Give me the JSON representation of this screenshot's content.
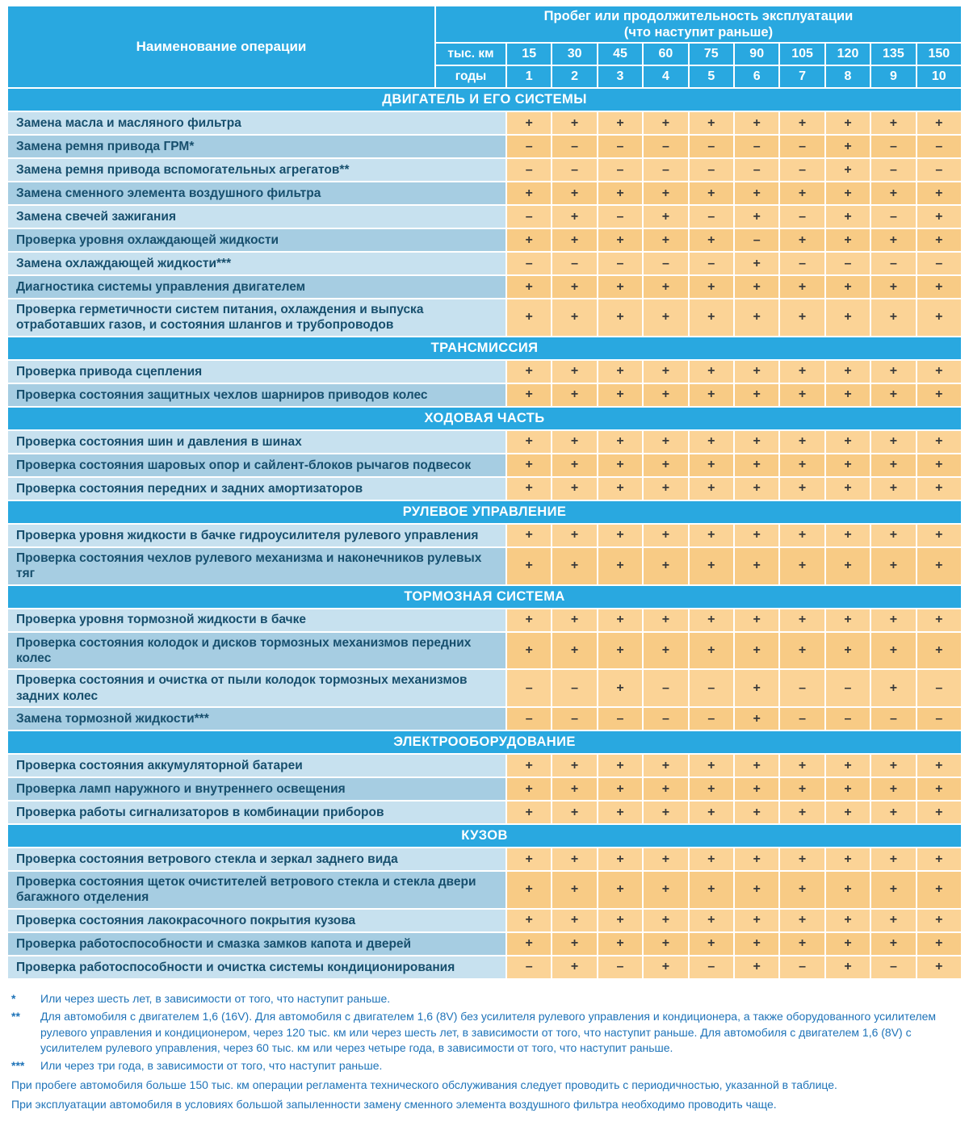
{
  "colors": {
    "header_blue": "#29a8e0",
    "label_light": "#c7e1ef",
    "label_dark": "#a6cde2",
    "cell_light": "#fbd396",
    "cell_dark": "#f8cb85",
    "label_text": "#174f6d",
    "mark_text": "#3a3a3a",
    "footnote_blue": "#1e73b8"
  },
  "header": {
    "operation_column_title": "Наименование операции",
    "interval_title": "Пробег или продолжительность эксплуатации\n(что наступит раньше)",
    "row_km": {
      "label": "тыс. км",
      "values": [
        "15",
        "30",
        "45",
        "60",
        "75",
        "90",
        "105",
        "120",
        "135",
        "150"
      ]
    },
    "row_years": {
      "label": "годы",
      "values": [
        "1",
        "2",
        "3",
        "4",
        "5",
        "6",
        "7",
        "8",
        "9",
        "10"
      ]
    }
  },
  "sections": [
    {
      "title": "ДВИГАТЕЛЬ И ЕГО СИСТЕМЫ",
      "rows": [
        {
          "label": "Замена масла и масляного фильтра",
          "marks": [
            "+",
            "+",
            "+",
            "+",
            "+",
            "+",
            "+",
            "+",
            "+",
            "+"
          ]
        },
        {
          "label": "Замена ремня привода ГРМ*",
          "marks": [
            "–",
            "–",
            "–",
            "–",
            "–",
            "–",
            "–",
            "+",
            "–",
            "–"
          ]
        },
        {
          "label": "Замена ремня привода вспомогательных агрегатов**",
          "marks": [
            "–",
            "–",
            "–",
            "–",
            "–",
            "–",
            "–",
            "+",
            "–",
            "–"
          ]
        },
        {
          "label": "Замена сменного элемента воздушного фильтра",
          "marks": [
            "+",
            "+",
            "+",
            "+",
            "+",
            "+",
            "+",
            "+",
            "+",
            "+"
          ]
        },
        {
          "label": "Замена свечей зажигания",
          "marks": [
            "–",
            "+",
            "–",
            "+",
            "–",
            "+",
            "–",
            "+",
            "–",
            "+"
          ]
        },
        {
          "label": "Проверка уровня охлаждающей жидкости",
          "marks": [
            "+",
            "+",
            "+",
            "+",
            "+",
            "–",
            "+",
            "+",
            "+",
            "+"
          ]
        },
        {
          "label": "Замена охлаждающей жидкости***",
          "marks": [
            "–",
            "–",
            "–",
            "–",
            "–",
            "+",
            "–",
            "–",
            "–",
            "–"
          ]
        },
        {
          "label": "Диагностика системы управления двигателем",
          "marks": [
            "+",
            "+",
            "+",
            "+",
            "+",
            "+",
            "+",
            "+",
            "+",
            "+"
          ]
        },
        {
          "label": "Проверка герметичности систем питания, охлаждения и выпуска отработавших газов, и состояния шлангов и трубопроводов",
          "marks": [
            "+",
            "+",
            "+",
            "+",
            "+",
            "+",
            "+",
            "+",
            "+",
            "+"
          ]
        }
      ]
    },
    {
      "title": "ТРАНСМИССИЯ",
      "rows": [
        {
          "label": "Проверка привода сцепления",
          "marks": [
            "+",
            "+",
            "+",
            "+",
            "+",
            "+",
            "+",
            "+",
            "+",
            "+"
          ]
        },
        {
          "label": "Проверка состояния защитных чехлов шарниров приводов колес",
          "marks": [
            "+",
            "+",
            "+",
            "+",
            "+",
            "+",
            "+",
            "+",
            "+",
            "+"
          ]
        }
      ]
    },
    {
      "title": "ХОДОВАЯ ЧАСТЬ",
      "rows": [
        {
          "label": "Проверка состояния шин и давления в шинах",
          "marks": [
            "+",
            "+",
            "+",
            "+",
            "+",
            "+",
            "+",
            "+",
            "+",
            "+"
          ]
        },
        {
          "label": "Проверка состояния шаровых опор и сайлент-блоков рычагов подвесок",
          "marks": [
            "+",
            "+",
            "+",
            "+",
            "+",
            "+",
            "+",
            "+",
            "+",
            "+"
          ]
        },
        {
          "label": "Проверка состояния передних и задних амортизаторов",
          "marks": [
            "+",
            "+",
            "+",
            "+",
            "+",
            "+",
            "+",
            "+",
            "+",
            "+"
          ]
        }
      ]
    },
    {
      "title": "РУЛЕВОЕ УПРАВЛЕНИЕ",
      "rows": [
        {
          "label": "Проверка уровня жидкости в бачке гидроусилителя рулевого управления",
          "marks": [
            "+",
            "+",
            "+",
            "+",
            "+",
            "+",
            "+",
            "+",
            "+",
            "+"
          ]
        },
        {
          "label": "Проверка состояния чехлов рулевого механизма и наконечников рулевых тяг",
          "marks": [
            "+",
            "+",
            "+",
            "+",
            "+",
            "+",
            "+",
            "+",
            "+",
            "+"
          ]
        }
      ]
    },
    {
      "title": "ТОРМОЗНАЯ СИСТЕМА",
      "rows": [
        {
          "label": "Проверка уровня тормозной жидкости в бачке",
          "marks": [
            "+",
            "+",
            "+",
            "+",
            "+",
            "+",
            "+",
            "+",
            "+",
            "+"
          ]
        },
        {
          "label": "Проверка состояния колодок и дисков тормозных механизмов передних колес",
          "marks": [
            "+",
            "+",
            "+",
            "+",
            "+",
            "+",
            "+",
            "+",
            "+",
            "+"
          ]
        },
        {
          "label": "Проверка состояния и очистка от пыли колодок тормозных механизмов задних колес",
          "marks": [
            "–",
            "–",
            "+",
            "–",
            "–",
            "+",
            "–",
            "–",
            "+",
            "–"
          ]
        },
        {
          "label": "Замена тормозной жидкости***",
          "marks": [
            "–",
            "–",
            "–",
            "–",
            "–",
            "+",
            "–",
            "–",
            "–",
            "–"
          ]
        }
      ]
    },
    {
      "title": "ЭЛЕКТРООБОРУДОВАНИЕ",
      "rows": [
        {
          "label": "Проверка состояния аккумуляторной батареи",
          "marks": [
            "+",
            "+",
            "+",
            "+",
            "+",
            "+",
            "+",
            "+",
            "+",
            "+"
          ]
        },
        {
          "label": "Проверка ламп наружного и внутреннего освещения",
          "marks": [
            "+",
            "+",
            "+",
            "+",
            "+",
            "+",
            "+",
            "+",
            "+",
            "+"
          ]
        },
        {
          "label": "Проверка работы сигнализаторов в комбинации приборов",
          "marks": [
            "+",
            "+",
            "+",
            "+",
            "+",
            "+",
            "+",
            "+",
            "+",
            "+"
          ]
        }
      ]
    },
    {
      "title": "КУЗОВ",
      "rows": [
        {
          "label": "Проверка состояния ветрового стекла и зеркал заднего вида",
          "marks": [
            "+",
            "+",
            "+",
            "+",
            "+",
            "+",
            "+",
            "+",
            "+",
            "+"
          ]
        },
        {
          "label": "Проверка состояния щеток очистителей ветрового стекла и стекла двери багажного отделения",
          "marks": [
            "+",
            "+",
            "+",
            "+",
            "+",
            "+",
            "+",
            "+",
            "+",
            "+"
          ]
        },
        {
          "label": "Проверка состояния лакокрасочного покрытия кузова",
          "marks": [
            "+",
            "+",
            "+",
            "+",
            "+",
            "+",
            "+",
            "+",
            "+",
            "+"
          ]
        },
        {
          "label": "Проверка работоспособности и смазка замков капота и дверей",
          "marks": [
            "+",
            "+",
            "+",
            "+",
            "+",
            "+",
            "+",
            "+",
            "+",
            "+"
          ]
        },
        {
          "label": "Проверка работоспособности и очистка системы кондиционирования",
          "marks": [
            "–",
            "+",
            "–",
            "+",
            "–",
            "+",
            "–",
            "+",
            "–",
            "+"
          ]
        }
      ]
    }
  ],
  "footnotes": [
    {
      "marker": "*",
      "text": "Или через шесть лет, в зависимости от того, что наступит раньше."
    },
    {
      "marker": "**",
      "text": "Для автомобиля с двигателем 1,6 (16V). Для автомобиля с двигателем 1,6 (8V) без усилителя рулевого управления и кондиционера, а также оборудованного усилителем рулевого управления и кондиционером, через 120 тыс. км или через шесть лет, в зависимости от того, что наступит раньше. Для автомобиля с двигателем 1,6 (8V) с усилителем рулевого управления, через 60 тыс. км или через четыре года, в зависимости от того, что наступит раньше."
    },
    {
      "marker": "***",
      "text": "Или через три года, в зависимости от того, что наступит раньше."
    }
  ],
  "notes": [
    "При пробеге автомобиля больше 150 тыс. км операции регламента технического обслуживания следует проводить с периодичностью, указанной в таблице.",
    "При эксплуатации автомобиля в условиях большой запыленности замену сменного элемента воздушного фильтра необходимо проводить чаще."
  ]
}
